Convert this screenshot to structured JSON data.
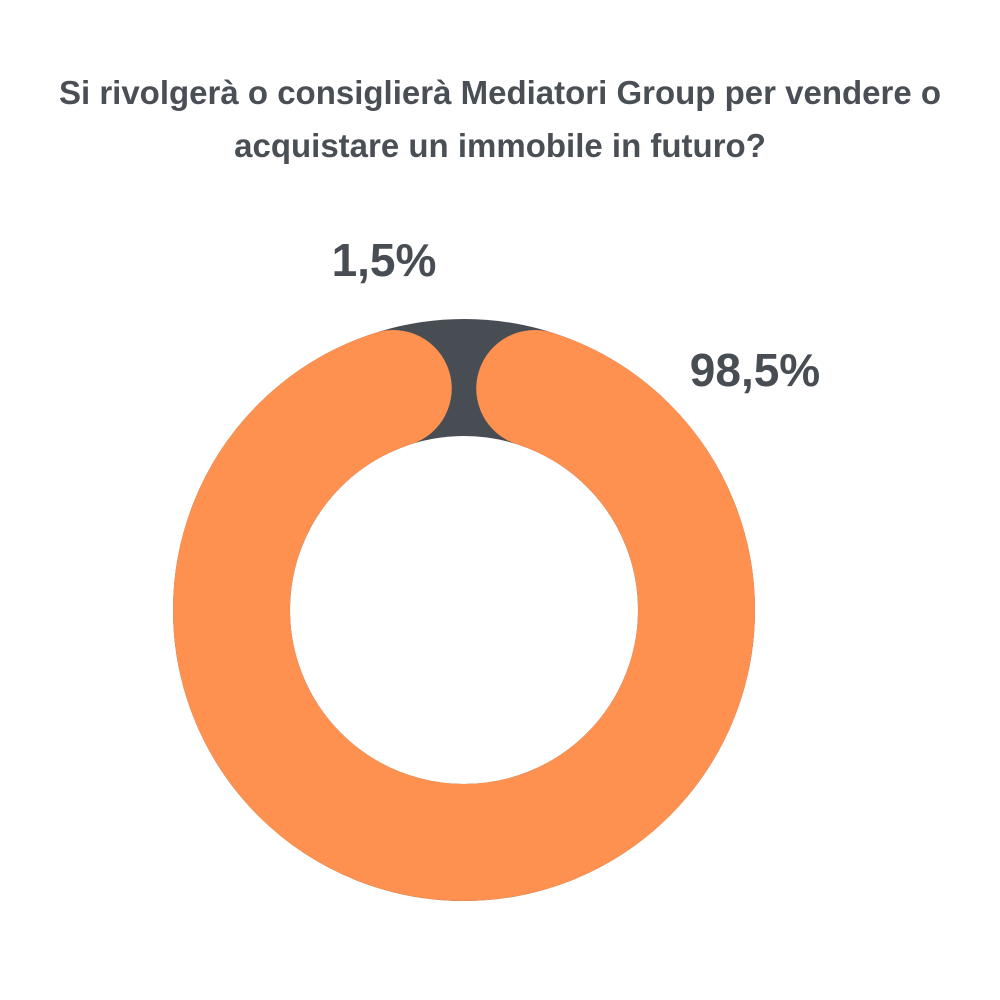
{
  "chart_data": {
    "type": "pie",
    "variant": "donut",
    "title": "Si rivolgerà o consiglierà Mediatori Group per vendere o acquistare un immobile in futuro?",
    "slices": [
      {
        "label": "1,5%",
        "value": 1.5,
        "color": "#484d54"
      },
      {
        "label": "98,5%",
        "value": 98.5,
        "color": "#fe914f"
      }
    ],
    "legend": "none"
  },
  "colors": {
    "label_text": "#484d54",
    "title_text": "#4a4f56",
    "background": "#ffffff"
  }
}
